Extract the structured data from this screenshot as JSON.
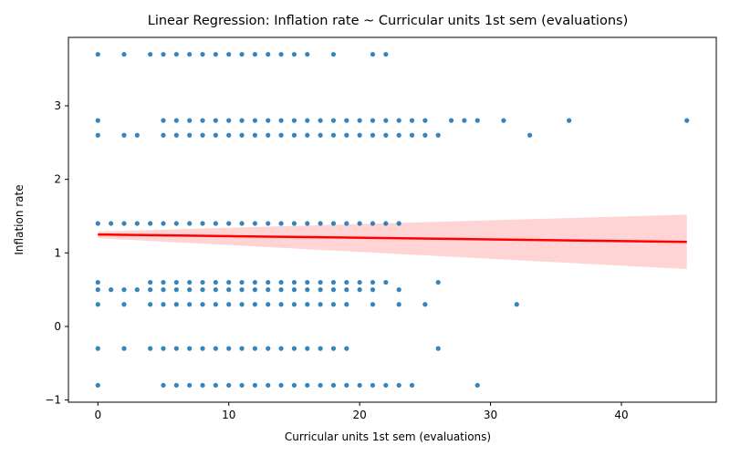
{
  "chart_data": {
    "type": "scatter",
    "title": "Linear Regression: Inflation rate ~ Curricular units 1st sem (evaluations)",
    "xlabel": "Curricular units 1st sem (evaluations)",
    "ylabel": "Inflation rate",
    "xlim": [
      -2.25,
      47.25
    ],
    "ylim": [
      -1.03,
      3.93
    ],
    "xticks": [
      0,
      10,
      20,
      30,
      40
    ],
    "yticks": [
      -1,
      0,
      1,
      2,
      3
    ],
    "grid": false,
    "point_color": "#1f77b4",
    "line_color": "#ff0000",
    "band_color": "#ffcccc",
    "regression": {
      "x_start": 0,
      "x_end": 45,
      "y_start": 1.25,
      "y_end": 1.15,
      "ci_lower_start": 1.2,
      "ci_lower_end": 0.78,
      "ci_upper_start": 1.29,
      "ci_upper_end": 1.52
    },
    "inflation_levels": [
      {
        "y": 3.7,
        "x": [
          0,
          2,
          4,
          5,
          6,
          7,
          8,
          9,
          10,
          11,
          12,
          13,
          14,
          15,
          16,
          18,
          21,
          22
        ]
      },
      {
        "y": 2.8,
        "x": [
          0,
          5,
          6,
          7,
          8,
          9,
          10,
          11,
          12,
          13,
          14,
          15,
          16,
          17,
          18,
          19,
          20,
          21,
          22,
          23,
          24,
          25,
          27,
          28,
          29,
          31,
          36,
          45
        ]
      },
      {
        "y": 2.6,
        "x": [
          0,
          2,
          3,
          5,
          6,
          7,
          8,
          9,
          10,
          11,
          12,
          13,
          14,
          15,
          16,
          17,
          18,
          19,
          20,
          21,
          22,
          23,
          24,
          25,
          26,
          33
        ]
      },
      {
        "y": 1.4,
        "x": [
          0,
          1,
          2,
          3,
          4,
          5,
          6,
          7,
          8,
          9,
          10,
          11,
          12,
          13,
          14,
          15,
          16,
          17,
          18,
          19,
          20,
          21,
          22,
          23
        ]
      },
      {
        "y": 0.6,
        "x": [
          0,
          4,
          5,
          6,
          7,
          8,
          9,
          10,
          11,
          12,
          13,
          14,
          15,
          16,
          17,
          18,
          19,
          20,
          21,
          22,
          26
        ]
      },
      {
        "y": 0.5,
        "x": [
          0,
          1,
          2,
          3,
          4,
          5,
          6,
          7,
          8,
          9,
          10,
          11,
          12,
          13,
          14,
          15,
          16,
          17,
          18,
          19,
          20,
          21,
          23
        ]
      },
      {
        "y": 0.3,
        "x": [
          0,
          2,
          4,
          5,
          6,
          7,
          8,
          9,
          10,
          11,
          12,
          13,
          14,
          15,
          16,
          17,
          18,
          19,
          21,
          23,
          25,
          32
        ]
      },
      {
        "y": -0.3,
        "x": [
          0,
          2,
          4,
          5,
          6,
          7,
          8,
          9,
          10,
          11,
          12,
          13,
          14,
          15,
          16,
          17,
          18,
          19,
          26
        ]
      },
      {
        "y": -0.8,
        "x": [
          0,
          5,
          6,
          7,
          8,
          9,
          10,
          11,
          12,
          13,
          14,
          15,
          16,
          17,
          18,
          19,
          20,
          21,
          22,
          23,
          24,
          29
        ]
      }
    ]
  }
}
